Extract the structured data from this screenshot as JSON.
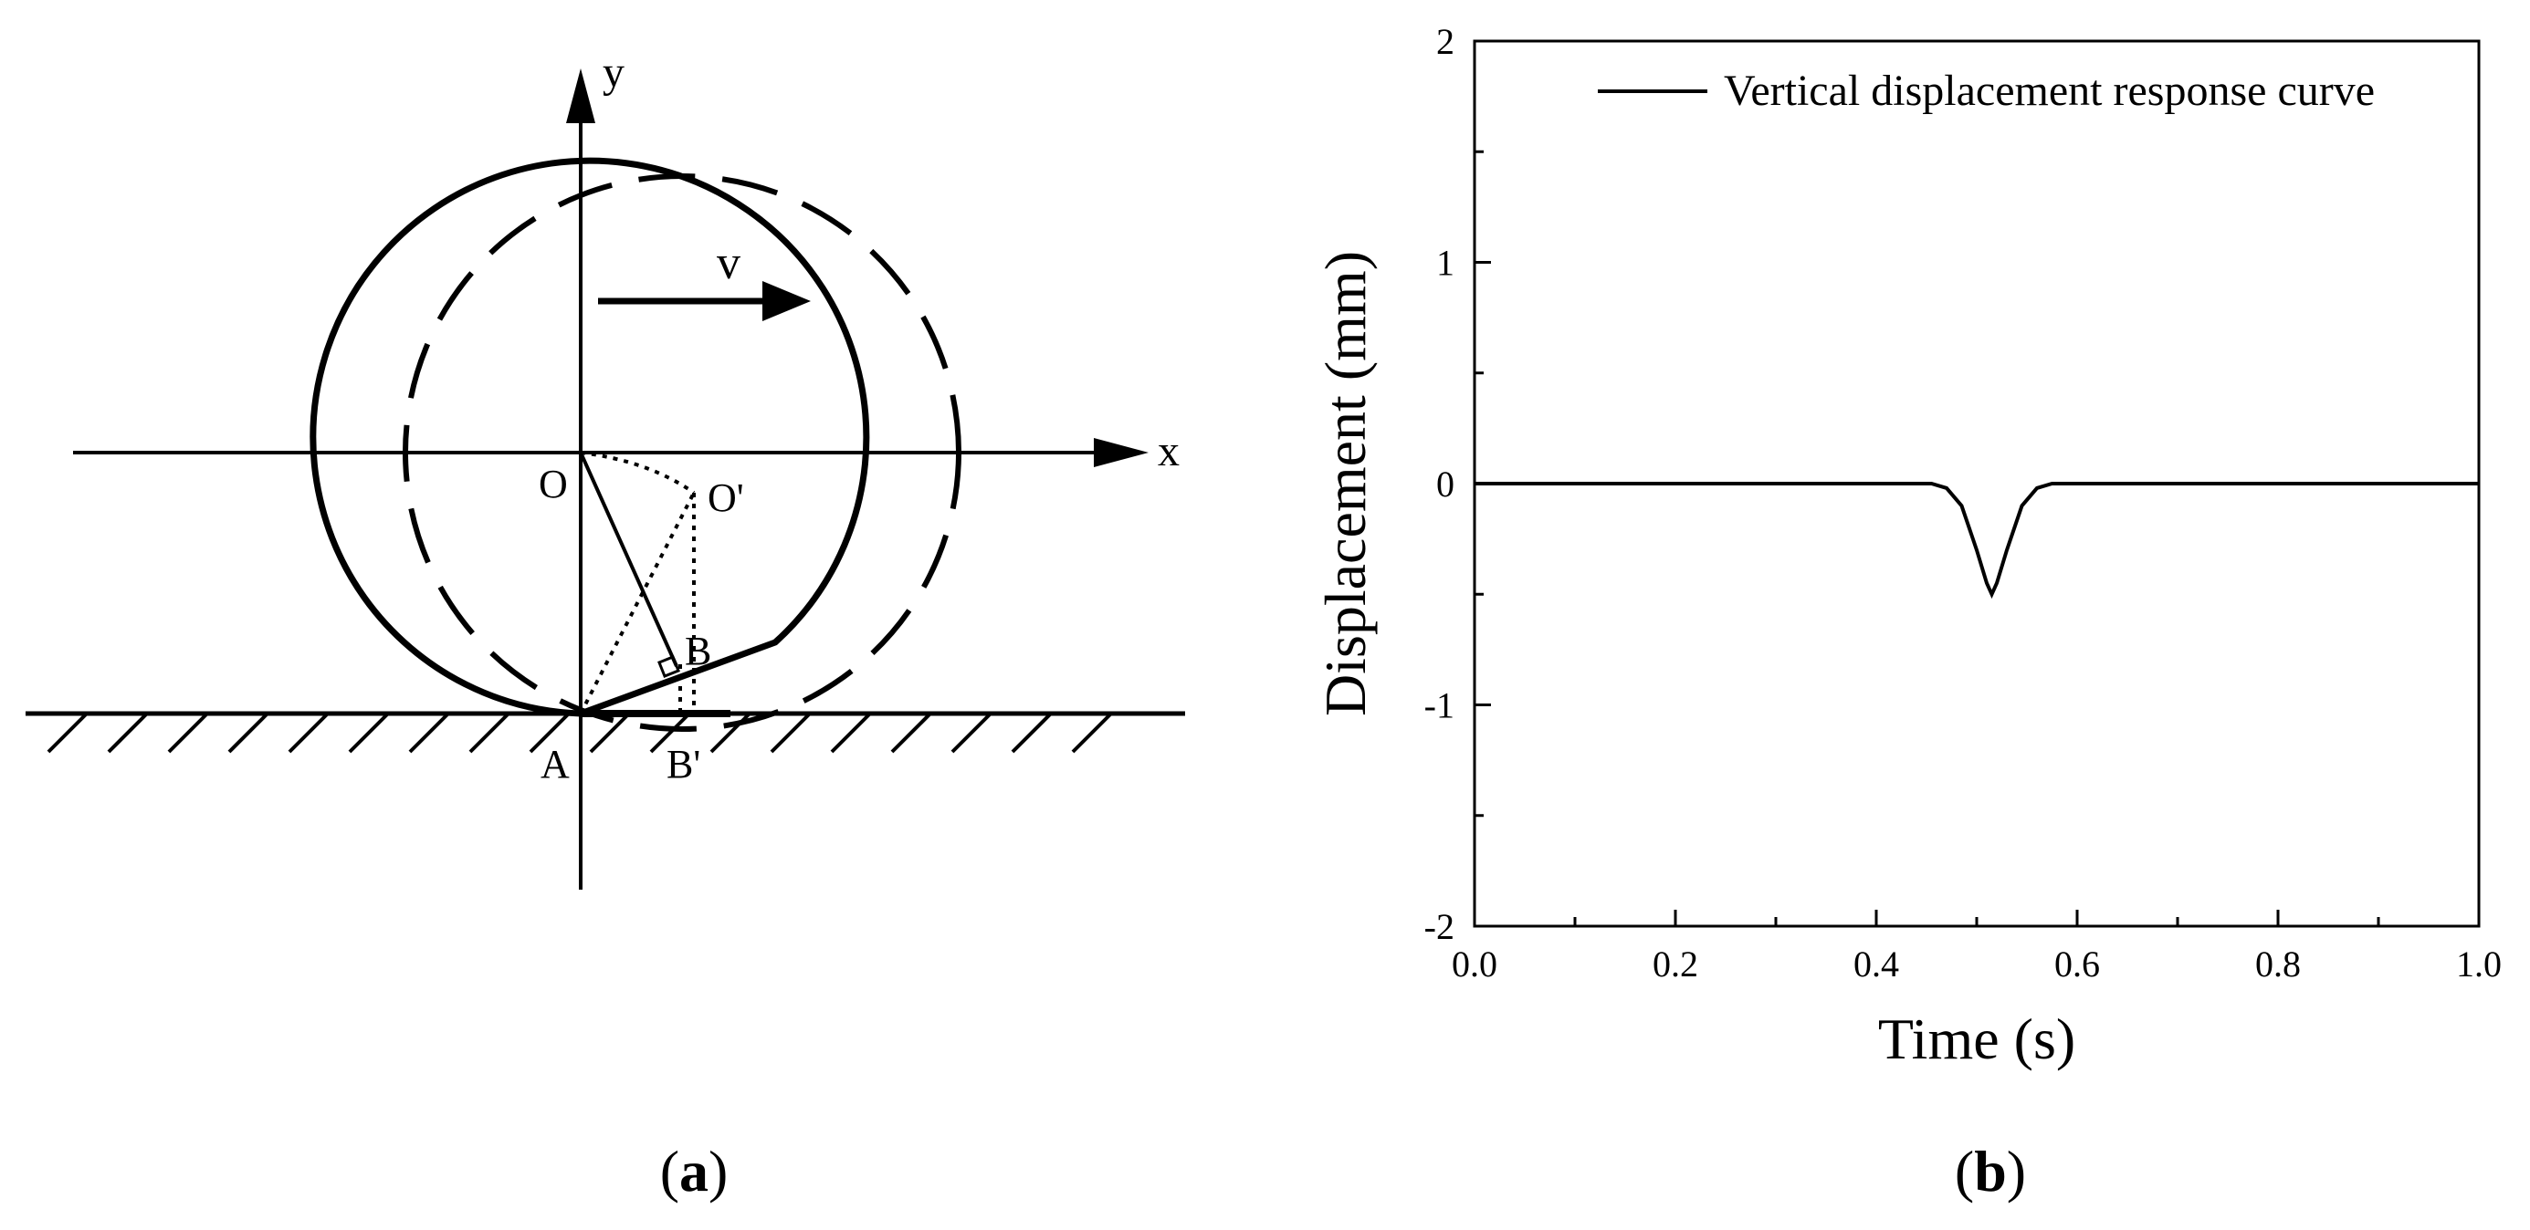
{
  "panel_a": {
    "label_open": "(",
    "label_letter": "a",
    "label_close": ")",
    "axis_x": "x",
    "axis_y": "y",
    "velocity": "v",
    "point_O": "O",
    "point_O_prime": "O'",
    "point_A": "A",
    "point_B": "B",
    "point_B_prime": "B'"
  },
  "panel_b": {
    "label_open": "(",
    "label_letter": "b",
    "label_close": ")"
  },
  "chart_data": {
    "type": "line",
    "xlabel": "Time (s)",
    "ylabel": "Displacement (mm)",
    "xlim": [
      0.0,
      1.0
    ],
    "ylim": [
      -2,
      2
    ],
    "x_ticks": [
      "0.0",
      "0.2",
      "0.4",
      "0.6",
      "0.8",
      "1.0"
    ],
    "y_ticks": [
      "2",
      "1",
      "0",
      "-1",
      "-2"
    ],
    "legend_position": "top-right",
    "grid": false,
    "series": [
      {
        "name": "Vertical displacement response curve",
        "x": [
          0.0,
          0.455,
          0.47,
          0.485,
          0.5,
          0.51,
          0.515,
          0.52,
          0.53,
          0.545,
          0.56,
          0.575,
          0.6,
          1.0
        ],
        "y": [
          0.0,
          0.0,
          -0.02,
          -0.1,
          -0.3,
          -0.45,
          -0.5,
          -0.45,
          -0.3,
          -0.1,
          -0.02,
          0.0,
          0.0,
          0.0
        ]
      }
    ]
  }
}
